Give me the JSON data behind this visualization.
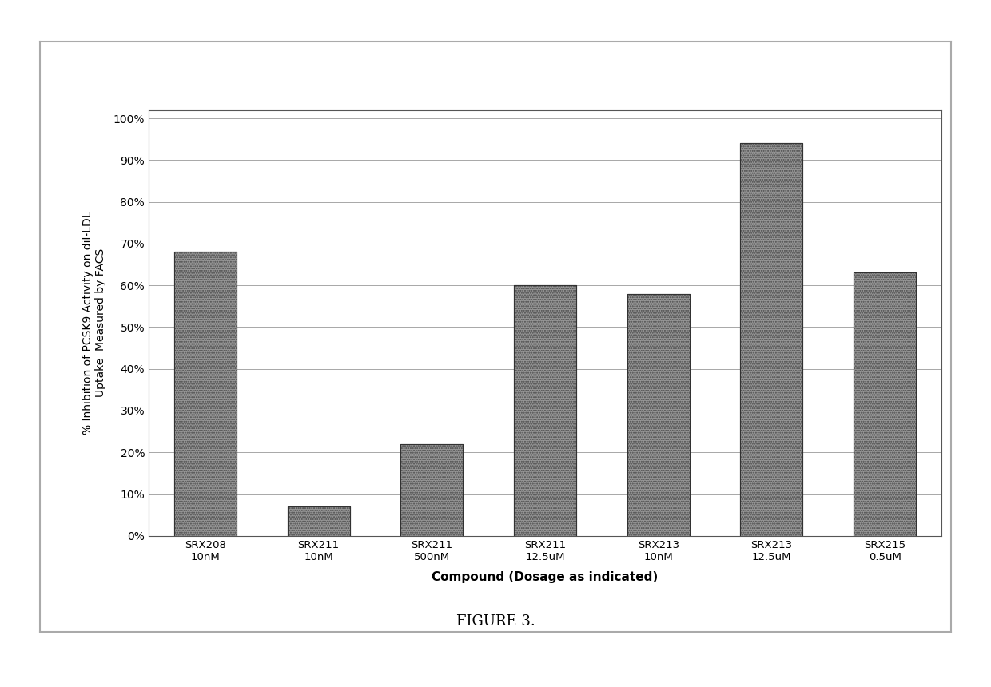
{
  "categories": [
    "SRX208\n10nM",
    "SRX211\n10nM",
    "SRX211\n500nM",
    "SRX211\n12.5uM",
    "SRX213\n10nM",
    "SRX213\n12.5uM",
    "SRX215\n0.5uM"
  ],
  "values": [
    0.68,
    0.07,
    0.22,
    0.6,
    0.58,
    0.94,
    0.63
  ],
  "ylabel": "% Inhibition of PCSK9 Activity on dil-LDL\nUptake  Measured by FACS",
  "xlabel": "Compound (Dosage as indicated)",
  "figure_caption": "FIGURE 3.",
  "yticks": [
    0.0,
    0.1,
    0.2,
    0.3,
    0.4,
    0.5,
    0.6,
    0.7,
    0.8,
    0.9,
    1.0
  ],
  "ytick_labels": [
    "0%",
    "10%",
    "20%",
    "30%",
    "40%",
    "50%",
    "60%",
    "70%",
    "80%",
    "90%",
    "100%"
  ],
  "bar_color_dark": "#3a3a3a",
  "bar_color_light": "#c8c8c8",
  "background_color": "#ffffff",
  "chart_bg": "#f5f5f5"
}
